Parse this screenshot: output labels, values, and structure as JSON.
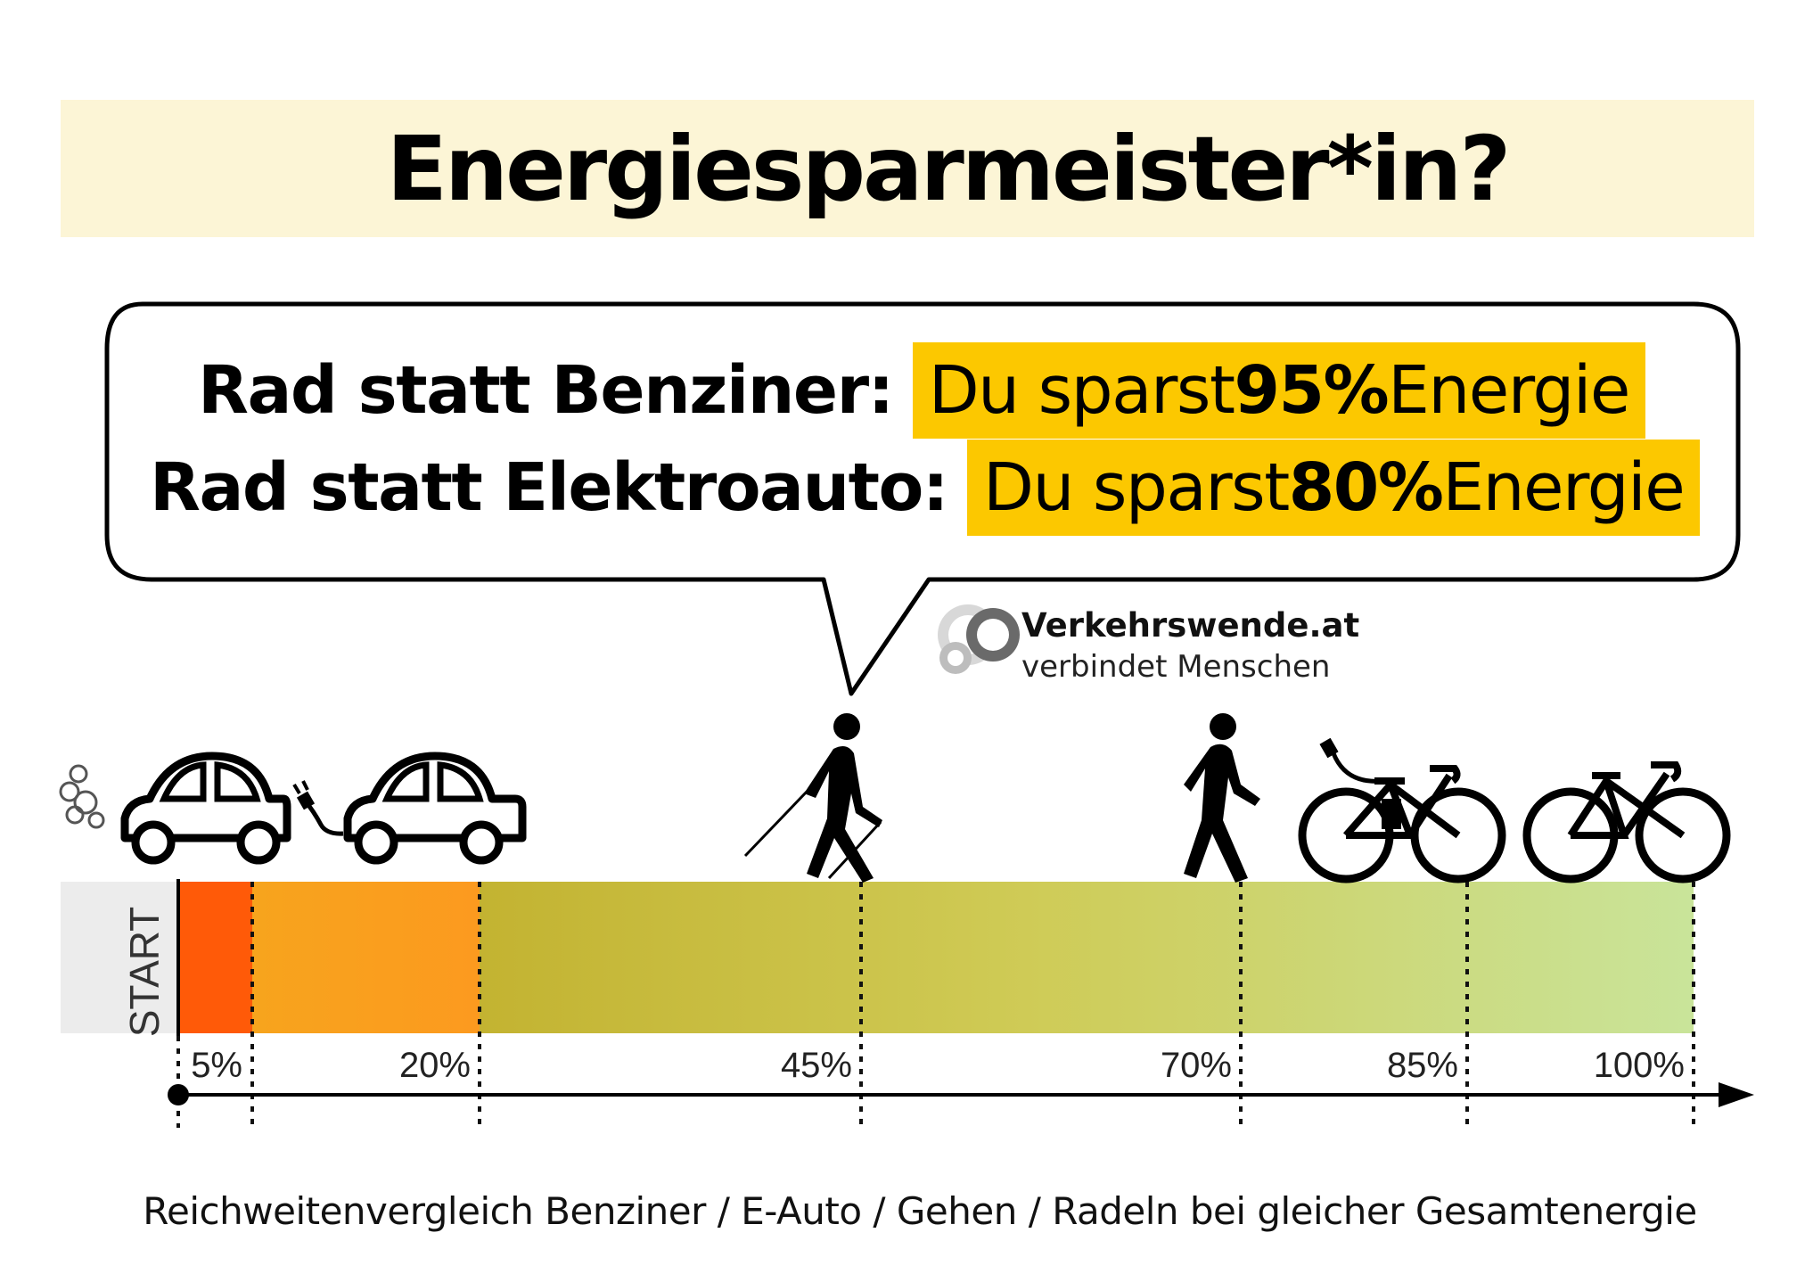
{
  "title": "Energiesparmeister*in?",
  "bubble": {
    "rows": [
      {
        "label": "Rad statt Benziner:",
        "prefix": "Du sparst ",
        "value": "95%",
        "suffix": " Energie"
      },
      {
        "label": "Rad statt Elektroauto:",
        "prefix": "Du sparst ",
        "value": "80%",
        "suffix": " Energie"
      }
    ],
    "highlight_color": "#fcc800"
  },
  "brand": {
    "name": "Verkehrswende.at",
    "tagline": "verbindet Menschen"
  },
  "scale": {
    "start_label": "START",
    "ticks": [
      {
        "label": "5%",
        "value": 5
      },
      {
        "label": "20%",
        "value": 20
      },
      {
        "label": "45%",
        "value": 45
      },
      {
        "label": "70%",
        "value": 70
      },
      {
        "label": "85%",
        "value": 85
      },
      {
        "label": "100%",
        "value": 100
      }
    ]
  },
  "icons": [
    "petrol-car-icon",
    "electric-car-icon",
    "walker-with-poles-icon",
    "walker-icon",
    "e-bike-icon",
    "bicycle-icon"
  ],
  "caption": "Reichweitenvergleich  Benziner / E-Auto / Gehen / Radeln bei gleicher Gesamtenergie"
}
